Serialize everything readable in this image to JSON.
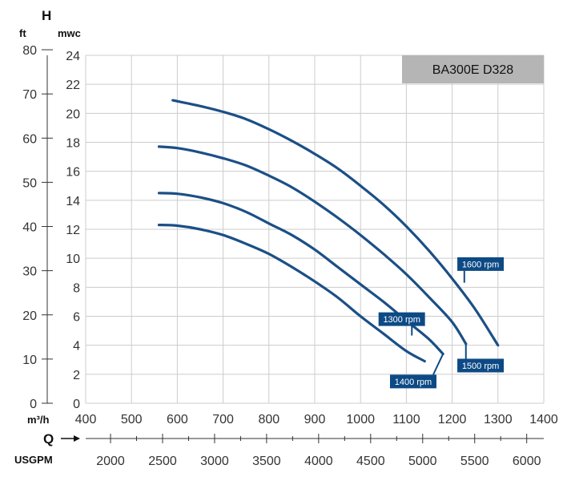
{
  "chart_data": {
    "type": "line",
    "title": "BA300E D328",
    "y_label": "H",
    "y_unit_left": "ft",
    "y_unit_right": "mwc",
    "x_unit": "m³/h",
    "q_label": "Q",
    "q_secondary_unit": "USGPM",
    "xlim": [
      400,
      1400
    ],
    "ylim": [
      0,
      24
    ],
    "x_ticks": [
      "400",
      "500",
      "600",
      "700",
      "800",
      "900",
      "1000",
      "1100",
      "1200",
      "1300",
      "1400"
    ],
    "y_ticks": [
      "0",
      "2",
      "4",
      "6",
      "8",
      "10",
      "12",
      "14",
      "16",
      "18",
      "20",
      "22",
      "24"
    ],
    "ft_ticks": [
      {
        "label": "0",
        "value": 0
      },
      {
        "label": "10",
        "value": 10
      },
      {
        "label": "20",
        "value": 20
      },
      {
        "label": "30",
        "value": 30
      },
      {
        "label": "40",
        "value": 40
      },
      {
        "label": "50",
        "value": 50
      },
      {
        "label": "60",
        "value": 60
      },
      {
        "label": "70",
        "value": 70
      },
      {
        "label": "80",
        "value": 80
      }
    ],
    "usgpm_ticks": [
      {
        "label": "2000",
        "value": 2000
      },
      {
        "label": "2500",
        "value": 2500
      },
      {
        "label": "3000",
        "value": 3000
      },
      {
        "label": "3500",
        "value": 3500
      },
      {
        "label": "4000",
        "value": 4000
      },
      {
        "label": "4500",
        "value": 4500
      },
      {
        "label": "5000",
        "value": 5000
      },
      {
        "label": "5500",
        "value": 5500
      },
      {
        "label": "6000",
        "value": 6000
      }
    ],
    "usgpm_minor": [
      2250,
      2750,
      3250,
      3750,
      4250,
      4750,
      5250,
      5750
    ],
    "grid": true,
    "series": [
      {
        "name": "1300 rpm",
        "x": [
          560,
          600,
          650,
          700,
          750,
          800,
          850,
          900,
          950,
          1000,
          1050,
          1100,
          1140
        ],
        "y": [
          12.3,
          12.25,
          12.0,
          11.6,
          11.0,
          10.3,
          9.4,
          8.4,
          7.3,
          6.0,
          4.8,
          3.6,
          2.9
        ]
      },
      {
        "name": "1400 rpm",
        "x": [
          560,
          600,
          650,
          700,
          750,
          800,
          850,
          900,
          950,
          1000,
          1050,
          1100,
          1150,
          1180
        ],
        "y": [
          14.5,
          14.45,
          14.2,
          13.8,
          13.2,
          12.4,
          11.6,
          10.6,
          9.4,
          8.2,
          7.0,
          5.7,
          4.4,
          3.4
        ]
      },
      {
        "name": "1500 rpm",
        "x": [
          560,
          600,
          650,
          700,
          750,
          800,
          850,
          900,
          950,
          1000,
          1050,
          1100,
          1150,
          1200,
          1230
        ],
        "y": [
          17.7,
          17.6,
          17.3,
          16.9,
          16.4,
          15.7,
          14.9,
          13.9,
          12.8,
          11.6,
          10.3,
          8.9,
          7.3,
          5.6,
          4.1
        ]
      },
      {
        "name": "1600 rpm",
        "x": [
          590,
          650,
          700,
          750,
          800,
          850,
          900,
          950,
          1000,
          1050,
          1100,
          1150,
          1200,
          1250,
          1300
        ],
        "y": [
          20.9,
          20.5,
          20.1,
          19.6,
          18.9,
          18.1,
          17.2,
          16.2,
          15.0,
          13.7,
          12.2,
          10.5,
          8.6,
          6.5,
          4.0
        ]
      }
    ],
    "labels": [
      {
        "text": "1300 rpm",
        "series": "1300 rpm",
        "at_x": 1090,
        "at_y": 5.8
      },
      {
        "text": "1400 rpm",
        "series": "1400 rpm",
        "at_x": 1115,
        "at_y": 1.5
      },
      {
        "text": "1500 rpm",
        "series": "1500 rpm",
        "at_x": 1262,
        "at_y": 2.6
      },
      {
        "text": "1600 rpm",
        "series": "1600 rpm",
        "at_x": 1262,
        "at_y": 9.6
      }
    ],
    "colors": {
      "line": "#1b4f86",
      "label_bg": "#0d4a85",
      "title_bg": "#b5b5b5",
      "grid": "#cccccc"
    }
  }
}
